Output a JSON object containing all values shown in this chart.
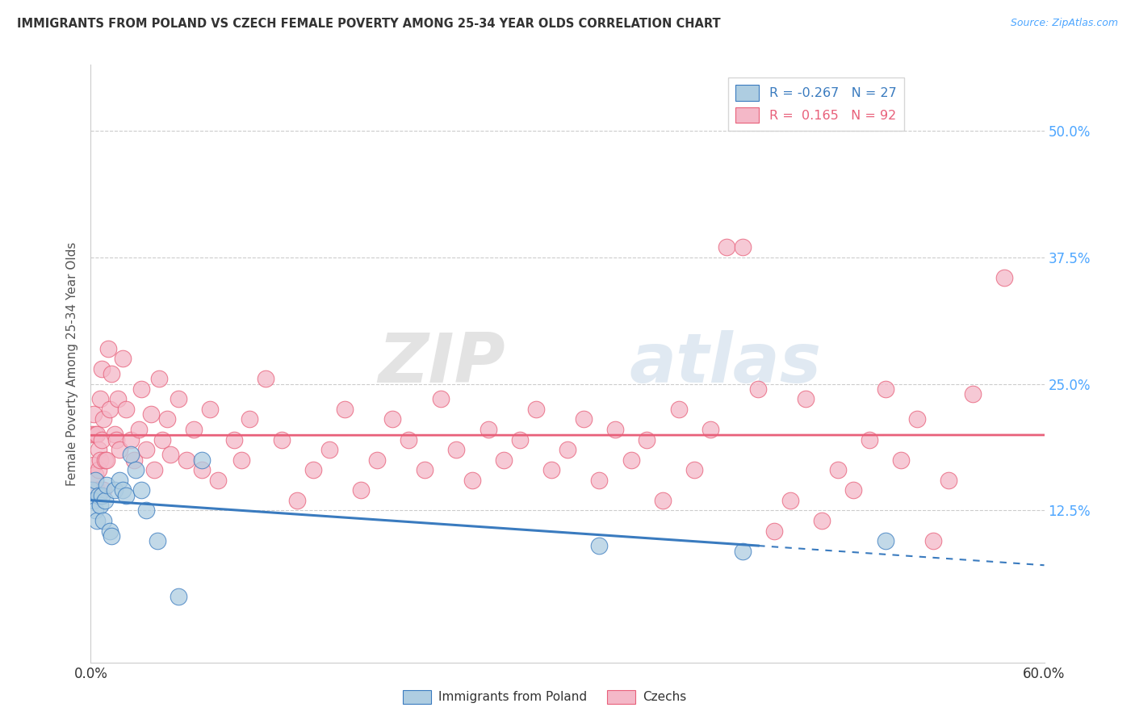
{
  "title": "IMMIGRANTS FROM POLAND VS CZECH FEMALE POVERTY AMONG 25-34 YEAR OLDS CORRELATION CHART",
  "source": "Source: ZipAtlas.com",
  "ylabel_label": "Female Poverty Among 25-34 Year Olds",
  "legend_label1": "Immigrants from Poland",
  "legend_label2": "Czechs",
  "r1": -0.267,
  "n1": 27,
  "r2": 0.165,
  "n2": 92,
  "xlim": [
    0.0,
    0.6
  ],
  "ylim": [
    -0.025,
    0.565
  ],
  "ytick_labels": [
    "12.5%",
    "25.0%",
    "37.5%",
    "50.0%"
  ],
  "ytick_positions": [
    0.125,
    0.25,
    0.375,
    0.5
  ],
  "color_poland": "#aecde1",
  "color_czech": "#f4b8c8",
  "line_color_poland": "#3a7bbf",
  "line_color_czech": "#e8607a",
  "watermark_zip": "ZIP",
  "watermark_atlas": "atlas",
  "poland_x": [
    0.001,
    0.002,
    0.003,
    0.003,
    0.004,
    0.005,
    0.006,
    0.007,
    0.008,
    0.009,
    0.01,
    0.012,
    0.013,
    0.015,
    0.018,
    0.02,
    0.022,
    0.025,
    0.028,
    0.032,
    0.035,
    0.042,
    0.055,
    0.07,
    0.32,
    0.41,
    0.5
  ],
  "poland_y": [
    0.145,
    0.135,
    0.125,
    0.155,
    0.115,
    0.14,
    0.13,
    0.14,
    0.115,
    0.135,
    0.15,
    0.105,
    0.1,
    0.145,
    0.155,
    0.145,
    0.14,
    0.18,
    0.165,
    0.145,
    0.125,
    0.095,
    0.04,
    0.175,
    0.09,
    0.085,
    0.095
  ],
  "czech_x": [
    0.001,
    0.002,
    0.002,
    0.003,
    0.003,
    0.004,
    0.004,
    0.005,
    0.005,
    0.006,
    0.006,
    0.007,
    0.007,
    0.008,
    0.008,
    0.009,
    0.01,
    0.011,
    0.012,
    0.013,
    0.015,
    0.016,
    0.017,
    0.018,
    0.02,
    0.022,
    0.025,
    0.027,
    0.03,
    0.032,
    0.035,
    0.038,
    0.04,
    0.043,
    0.045,
    0.048,
    0.05,
    0.055,
    0.06,
    0.065,
    0.07,
    0.075,
    0.08,
    0.09,
    0.095,
    0.1,
    0.11,
    0.12,
    0.13,
    0.14,
    0.15,
    0.16,
    0.17,
    0.18,
    0.19,
    0.2,
    0.21,
    0.22,
    0.23,
    0.24,
    0.25,
    0.26,
    0.27,
    0.28,
    0.29,
    0.3,
    0.31,
    0.32,
    0.33,
    0.34,
    0.35,
    0.36,
    0.37,
    0.38,
    0.39,
    0.4,
    0.41,
    0.42,
    0.43,
    0.44,
    0.45,
    0.46,
    0.47,
    0.48,
    0.49,
    0.5,
    0.51,
    0.52,
    0.53,
    0.54,
    0.555,
    0.575
  ],
  "czech_y": [
    0.2,
    0.17,
    0.22,
    0.16,
    0.2,
    0.145,
    0.2,
    0.165,
    0.185,
    0.175,
    0.235,
    0.195,
    0.265,
    0.145,
    0.215,
    0.175,
    0.175,
    0.285,
    0.225,
    0.26,
    0.2,
    0.195,
    0.235,
    0.185,
    0.275,
    0.225,
    0.195,
    0.175,
    0.205,
    0.245,
    0.185,
    0.22,
    0.165,
    0.255,
    0.195,
    0.215,
    0.18,
    0.235,
    0.175,
    0.205,
    0.165,
    0.225,
    0.155,
    0.195,
    0.175,
    0.215,
    0.255,
    0.195,
    0.135,
    0.165,
    0.185,
    0.225,
    0.145,
    0.175,
    0.215,
    0.195,
    0.165,
    0.235,
    0.185,
    0.155,
    0.205,
    0.175,
    0.195,
    0.225,
    0.165,
    0.185,
    0.215,
    0.155,
    0.205,
    0.175,
    0.195,
    0.135,
    0.225,
    0.165,
    0.205,
    0.385,
    0.385,
    0.245,
    0.105,
    0.135,
    0.235,
    0.115,
    0.165,
    0.145,
    0.195,
    0.245,
    0.175,
    0.215,
    0.095,
    0.155,
    0.24,
    0.355
  ]
}
